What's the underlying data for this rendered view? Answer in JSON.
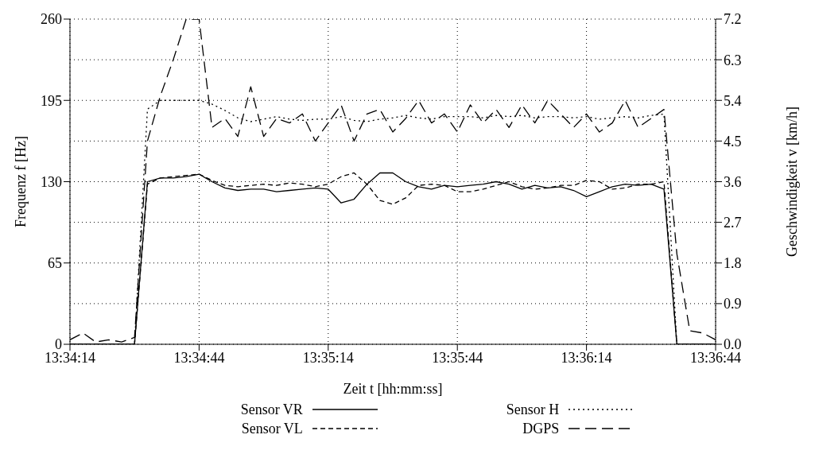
{
  "chart_data": {
    "type": "line",
    "xlabel": "Zeit t [hh:mm:ss]",
    "ylabel": "Frequenz f [Hz]",
    "y2label": "Geschwindigkeit v [km/h]",
    "x": [
      13.570556,
      13.571389,
      13.572222,
      13.573056,
      13.573889,
      13.574722,
      13.575556,
      13.576389,
      13.577222,
      13.578056,
      13.578889,
      13.579722,
      13.580556,
      13.581389,
      13.582222,
      13.583056,
      13.583889,
      13.584722,
      13.585556,
      13.586389,
      13.587222,
      13.588056,
      13.588889,
      13.589722,
      13.590556,
      13.591389,
      13.592222,
      13.593056,
      13.593889,
      13.594722,
      13.595556,
      13.596389,
      13.597222,
      13.598056,
      13.598889,
      13.599722,
      13.600556,
      13.601389,
      13.602222,
      13.603056,
      13.603889,
      13.604722,
      13.605556,
      13.606389,
      13.607222,
      13.608056,
      13.608889,
      13.609722,
      13.610556,
      13.611389,
      13.612222
    ],
    "series": [
      {
        "name": "Sensor VR",
        "color": "#000000",
        "line_style": "solid",
        "values": [
          0,
          0,
          0,
          0,
          0,
          0,
          130,
          133,
          133,
          134,
          136,
          130,
          125,
          123,
          124,
          124,
          122,
          123,
          124,
          125,
          124,
          113,
          116,
          128,
          137,
          137,
          130,
          126,
          124,
          127,
          126,
          127,
          128,
          130,
          128,
          124,
          127,
          125,
          126,
          123,
          118,
          122,
          126,
          128,
          127,
          128,
          124,
          0,
          0,
          0,
          0
        ]
      },
      {
        "name": "Sensor VL",
        "color": "#000000",
        "line_style": "dashed",
        "values": [
          0,
          0,
          0,
          0,
          0,
          0,
          128,
          133,
          134,
          135,
          136,
          131,
          127,
          126,
          127,
          128,
          127,
          129,
          128,
          126,
          128,
          134,
          137,
          128,
          115,
          112,
          117,
          127,
          128,
          127,
          122,
          122,
          124,
          127,
          130,
          126,
          124,
          125,
          127,
          127,
          131,
          130,
          124,
          125,
          128,
          128,
          130,
          0,
          0,
          0,
          0
        ]
      },
      {
        "name": "Sensor H",
        "color": "#000000",
        "line_style": "dotted",
        "values": [
          0,
          0,
          0,
          0,
          0,
          0,
          188,
          195,
          195,
          195,
          195,
          192,
          187,
          181,
          178,
          180,
          182,
          180,
          179,
          180,
          180,
          182,
          179,
          178,
          180,
          181,
          183,
          181,
          180,
          182,
          182,
          182,
          181,
          183,
          182,
          183,
          181,
          182,
          182,
          181,
          182,
          180,
          181,
          182,
          181,
          183,
          184,
          0,
          0,
          0,
          0
        ]
      },
      {
        "name": "DGPS",
        "color": "#000000",
        "line_style": "dashed",
        "axis": "y2",
        "values": [
          0.1,
          0.25,
          0.05,
          0.1,
          0.05,
          0.15,
          4.5,
          5.5,
          6.3,
          7.2,
          7.2,
          4.8,
          5.0,
          4.6,
          5.7,
          4.6,
          5.0,
          4.9,
          5.1,
          4.5,
          4.9,
          5.3,
          4.5,
          5.1,
          5.2,
          4.7,
          5.0,
          5.4,
          4.9,
          5.1,
          4.7,
          5.3,
          4.9,
          5.2,
          4.8,
          5.3,
          4.9,
          5.4,
          5.1,
          4.8,
          5.1,
          4.7,
          4.9,
          5.4,
          4.8,
          5.0,
          5.2,
          2.0,
          0.3,
          0.25,
          0.1
        ]
      }
    ],
    "xlim": [
      13.570556,
      13.612222
    ],
    "xticks": [
      {
        "value": 13.570556,
        "label": "13:34:14"
      },
      {
        "value": 13.578889,
        "label": "13:34:44"
      },
      {
        "value": 13.587222,
        "label": "13:35:14"
      },
      {
        "value": 13.595556,
        "label": "13:35:44"
      },
      {
        "value": 13.603889,
        "label": "13:36:14"
      },
      {
        "value": 13.612222,
        "label": "13:36:44"
      }
    ],
    "ylim": [
      0,
      260
    ],
    "yticks": [
      0,
      65,
      130,
      195,
      260
    ],
    "y2lim": [
      0,
      7.2
    ],
    "y2ticks": [
      {
        "value": 0,
        "label": "0.0"
      },
      0.9,
      1.8,
      2.7,
      3.6,
      4.5,
      5.4,
      6.3,
      7.2
    ],
    "grid": true,
    "legend": "bottom",
    "marker": "none"
  }
}
